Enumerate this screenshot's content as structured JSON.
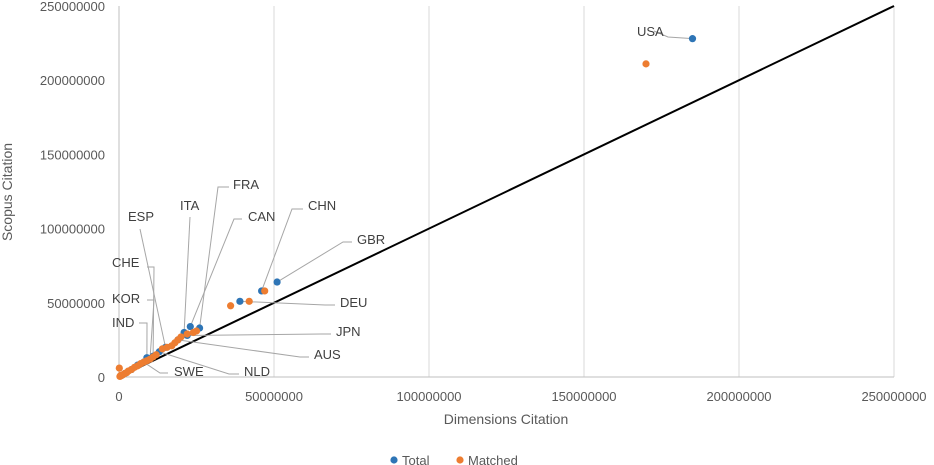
{
  "chart_data": {
    "type": "scatter",
    "xlabel": "Dimensions Citation",
    "ylabel": "Scopus Citation",
    "xlim": [
      0,
      250000000
    ],
    "ylim": [
      0,
      250000000
    ],
    "xticks": [
      0,
      50000000,
      100000000,
      150000000,
      200000000,
      250000000
    ],
    "yticks": [
      0,
      50000000,
      100000000,
      150000000,
      200000000,
      250000000
    ],
    "xtick_labels": [
      "0",
      "50000000",
      "100000000",
      "150000000",
      "200000000",
      "250000000"
    ],
    "ytick_labels": [
      "0",
      "50000000",
      "100000000",
      "150000000",
      "200000000",
      "250000000"
    ],
    "grid": "vertical",
    "reference_line": {
      "from": [
        0,
        0
      ],
      "to": [
        250000000,
        250000000
      ],
      "color": "#000000"
    },
    "legend": {
      "placement": "bottom"
    },
    "series": [
      {
        "name": "Total",
        "color": "#2e75b6",
        "points": [
          {
            "label": "USA",
            "x": 185000000,
            "y": 228000000
          },
          {
            "label": "CHN",
            "x": 46000000,
            "y": 58000000
          },
          {
            "label": "GBR",
            "x": 51000000,
            "y": 64000000
          },
          {
            "label": "DEU",
            "x": 39000000,
            "y": 51000000
          },
          {
            "label": "FRA",
            "x": 26000000,
            "y": 33000000
          },
          {
            "label": "JPN",
            "x": 22000000,
            "y": 28000000
          },
          {
            "label": "CAN",
            "x": 23000000,
            "y": 34000000
          },
          {
            "label": "ITA",
            "x": 21000000,
            "y": 30000000
          },
          {
            "label": "AUS",
            "x": 19000000,
            "y": 25000000
          },
          {
            "label": "ESP",
            "x": 15000000,
            "y": 20000000
          },
          {
            "label": "NLD",
            "x": 13000000,
            "y": 17000000
          },
          {
            "label": "CHE",
            "x": 11000000,
            "y": 14000000
          },
          {
            "label": "IND",
            "x": 9000000,
            "y": 13000000
          },
          {
            "label": "KOR",
            "x": 10000000,
            "y": 12000000
          },
          {
            "label": "SWE",
            "x": 8000000,
            "y": 10000000
          },
          {
            "x": 6000000,
            "y": 8000000
          },
          {
            "x": 4000000,
            "y": 5000000
          },
          {
            "x": 2000000,
            "y": 2500000
          },
          {
            "x": 1000000,
            "y": 1200000
          }
        ]
      },
      {
        "name": "Matched",
        "color": "#ed7d31",
        "points": [
          {
            "x": 170000000,
            "y": 211000000
          },
          {
            "x": 47000000,
            "y": 58000000
          },
          {
            "x": 42000000,
            "y": 51000000
          },
          {
            "x": 36000000,
            "y": 48000000
          },
          {
            "x": 25000000,
            "y": 31000000
          },
          {
            "x": 24000000,
            "y": 30000000
          },
          {
            "x": 22000000,
            "y": 29000000
          },
          {
            "x": 20000000,
            "y": 27000000
          },
          {
            "x": 19000000,
            "y": 25000000
          },
          {
            "x": 18000000,
            "y": 23000000
          },
          {
            "x": 17000000,
            "y": 21000000
          },
          {
            "x": 15500000,
            "y": 20000000
          },
          {
            "x": 14000000,
            "y": 19000000
          },
          {
            "x": 12000000,
            "y": 15000000
          },
          {
            "x": 11000000,
            "y": 13500000
          },
          {
            "x": 10000000,
            "y": 12000000
          },
          {
            "x": 9000000,
            "y": 11000000
          },
          {
            "x": 8000000,
            "y": 10000000
          },
          {
            "x": 7000000,
            "y": 9000000
          },
          {
            "x": 6000000,
            "y": 7500000
          },
          {
            "x": 5000000,
            "y": 6500000
          },
          {
            "x": 4000000,
            "y": 5000000
          },
          {
            "x": 3000000,
            "y": 4000000
          },
          {
            "x": 2500000,
            "y": 3000000
          },
          {
            "x": 1800000,
            "y": 2300000
          },
          {
            "x": 1200000,
            "y": 1500000
          },
          {
            "x": 700000,
            "y": 900000
          },
          {
            "x": 300000,
            "y": 400000
          },
          {
            "x": 100000,
            "y": 6000000
          },
          {
            "x": 500000,
            "y": 1000000
          }
        ]
      }
    ]
  }
}
